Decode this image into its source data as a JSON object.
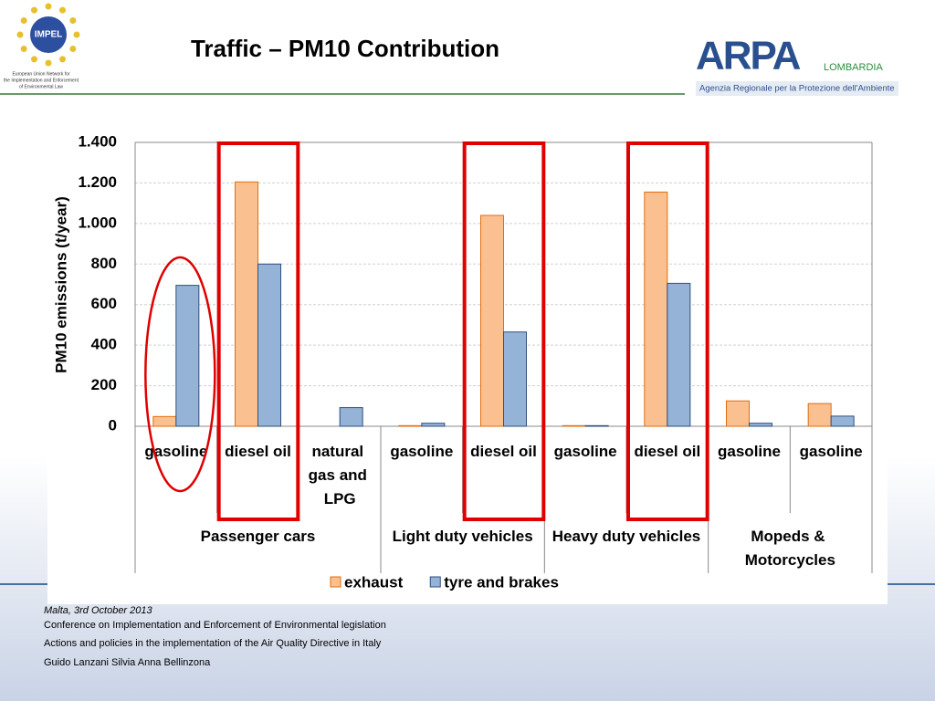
{
  "header": {
    "title": "Traffic – PM10 Contribution",
    "left_logo": {
      "name": "IMPEL",
      "caption": [
        "European Union Network for",
        "the Implementation and Enforcement",
        "of Environmental Law"
      ]
    },
    "right_logo": {
      "name": "ARPA",
      "region": "LOMBARDIA",
      "caption": "Agenzia Regionale per la Protezione dell'Ambiente"
    }
  },
  "chart_data": {
    "type": "bar",
    "y_label": "PM10 emissions (t/year)",
    "groups": [
      {
        "label": "Passenger cars",
        "categories": [
          "gasoline",
          "diesel oil",
          "natural gas and LPG"
        ]
      },
      {
        "label": "Light duty vehicles",
        "categories": [
          "gasoline",
          "diesel oil"
        ]
      },
      {
        "label": "Heavy duty vehicles",
        "categories": [
          "gasoline",
          "diesel oil"
        ]
      },
      {
        "label": "Mopeds & Motorcycles",
        "categories": [
          "gasoline",
          "gasoline"
        ]
      }
    ],
    "series": [
      {
        "name": "exhaust",
        "color": "#fac090",
        "values": [
          48,
          1205,
          0,
          3,
          1040,
          3,
          1155,
          125,
          112
        ]
      },
      {
        "name": "tyre and brakes",
        "color": "#95b3d7",
        "values": [
          695,
          800,
          92,
          15,
          465,
          3,
          705,
          15,
          50
        ]
      }
    ],
    "ylim": [
      0,
      1400
    ],
    "yticks": [
      0,
      200,
      400,
      600,
      800,
      {
        "value": 1000,
        "label": "1.000"
      },
      {
        "value": 1200,
        "label": "1.200"
      },
      {
        "value": 1400,
        "label": "1.400"
      }
    ],
    "grid": true,
    "legend": "bottom"
  },
  "footer": {
    "date": "Malta, 3rd  October 2013",
    "lines": [
      "Conference on Implementation and Enforcement of Environmental legislation",
      "Actions and policies in the implementation of the Air Quality Directive in Italy",
      "Guido Lanzani  Silvia Anna Bellinzona"
    ]
  }
}
